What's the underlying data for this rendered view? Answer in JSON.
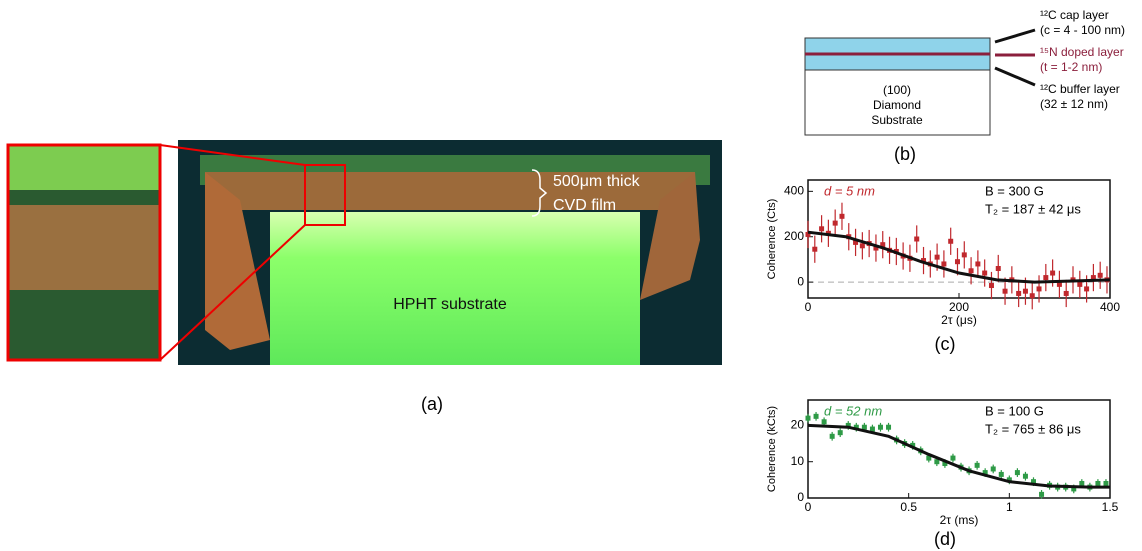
{
  "panel_a": {
    "label": "(a)",
    "film_label_1": "500μm thick",
    "film_label_2": "CVD film",
    "substrate_label": "HPHT substrate"
  },
  "panel_b": {
    "label": "(b)",
    "substrate_1": "(100)",
    "substrate_2": "Diamond",
    "substrate_3": "Substrate",
    "cap_1": "¹²C cap layer",
    "cap_2": "(c = 4 - 100 nm)",
    "doped_1": "¹⁵N doped layer",
    "doped_2": "(t = 1-2 nm)",
    "buffer_1": "¹²C buffer layer",
    "buffer_2": "(32 ± 12 nm)"
  },
  "chart_data": [
    {
      "type": "scatter",
      "panel_label": "(c)",
      "x_label": "2τ (μs)",
      "y_label": "Coherence (Cts)",
      "annotations": [
        "d = 5 nm",
        "B = 300 G",
        "T₂ = 187 ± 42 μs"
      ],
      "xlim": [
        0,
        400
      ],
      "xticks": [
        0,
        200,
        400
      ],
      "ylim": [
        -70,
        450
      ],
      "yticks": [
        0,
        200,
        400
      ],
      "series": [
        {
          "color": "#c0282d",
          "x": [
            0,
            9,
            18,
            27,
            36,
            45,
            54,
            63,
            72,
            81,
            90,
            99,
            108,
            117,
            126,
            135,
            144,
            153,
            162,
            171,
            180,
            189,
            198,
            207,
            216,
            225,
            234,
            243,
            252,
            261,
            270,
            279,
            288,
            297,
            306,
            315,
            324,
            333,
            342,
            351,
            360,
            369,
            378,
            387,
            396
          ],
          "values": [
            210,
            145,
            235,
            215,
            260,
            290,
            200,
            175,
            160,
            170,
            150,
            165,
            140,
            135,
            115,
            105,
            190,
            95,
            80,
            110,
            80,
            180,
            90,
            120,
            50,
            80,
            40,
            -15,
            60,
            -40,
            10,
            -50,
            -40,
            -60,
            -30,
            20,
            40,
            -10,
            -50,
            10,
            -10,
            -30,
            20,
            30,
            10
          ],
          "errors": [
            60,
            60,
            60,
            60,
            60,
            60,
            60,
            60,
            60,
            60,
            60,
            60,
            60,
            60,
            60,
            60,
            60,
            60,
            60,
            60,
            60,
            60,
            60,
            60,
            60,
            60,
            60,
            60,
            60,
            60,
            60,
            60,
            60,
            60,
            60,
            60,
            60,
            60,
            60,
            60,
            60,
            60,
            60,
            60,
            60
          ]
        },
        {
          "color": "#111111",
          "x": [
            0,
            50,
            100,
            150,
            200,
            250,
            300,
            350,
            400
          ],
          "values": [
            220,
            200,
            150,
            90,
            40,
            10,
            0,
            5,
            10
          ]
        }
      ]
    },
    {
      "type": "scatter",
      "panel_label": "(d)",
      "x_label": "2τ (ms)",
      "y_label": "Coherence (kCts)",
      "annotations": [
        "d = 52 nm",
        "B = 100 G",
        "T₂ = 765 ± 86 μs"
      ],
      "xlim": [
        0,
        1.5
      ],
      "xticks": [
        0,
        0.5,
        1,
        1.5
      ],
      "ylim": [
        0,
        27
      ],
      "yticks": [
        0,
        10,
        20
      ],
      "series": [
        {
          "color": "#2e9a46",
          "x": [
            0,
            0.04,
            0.08,
            0.12,
            0.16,
            0.2,
            0.24,
            0.28,
            0.32,
            0.36,
            0.4,
            0.44,
            0.48,
            0.52,
            0.56,
            0.6,
            0.64,
            0.68,
            0.72,
            0.76,
            0.8,
            0.84,
            0.88,
            0.92,
            0.96,
            1,
            1.04,
            1.08,
            1.12,
            1.16,
            1.2,
            1.24,
            1.28,
            1.32,
            1.36,
            1.4,
            1.44,
            1.48
          ],
          "values": [
            22,
            22.5,
            21,
            17,
            18,
            20,
            19.5,
            19.5,
            19,
            19.5,
            19.5,
            16,
            15,
            14.5,
            13,
            11,
            10,
            9.5,
            11,
            8.5,
            7.5,
            9,
            7,
            8,
            6.5,
            5,
            7,
            6,
            4.5,
            1,
            3.5,
            3,
            3,
            2.5,
            4,
            3,
            4,
            4
          ],
          "errors": [
            1.2,
            1.2,
            1.2,
            1.2,
            1.2,
            1.2,
            1.2,
            1.2,
            1.2,
            1.2,
            1.2,
            1.2,
            1.2,
            1.2,
            1.2,
            1.2,
            1.2,
            1.2,
            1.2,
            1.2,
            1.2,
            1.2,
            1.2,
            1.2,
            1.2,
            1.2,
            1.2,
            1.2,
            1.2,
            1.2,
            1.2,
            1.2,
            1.2,
            1.2,
            1.2,
            1.2,
            1.2,
            1.2
          ]
        },
        {
          "color": "#111111",
          "x": [
            0,
            0.2,
            0.4,
            0.6,
            0.8,
            1.0,
            1.2,
            1.4,
            1.5
          ],
          "values": [
            20,
            19.5,
            17,
            12,
            7.5,
            4.5,
            3.3,
            3,
            3
          ]
        }
      ]
    }
  ]
}
